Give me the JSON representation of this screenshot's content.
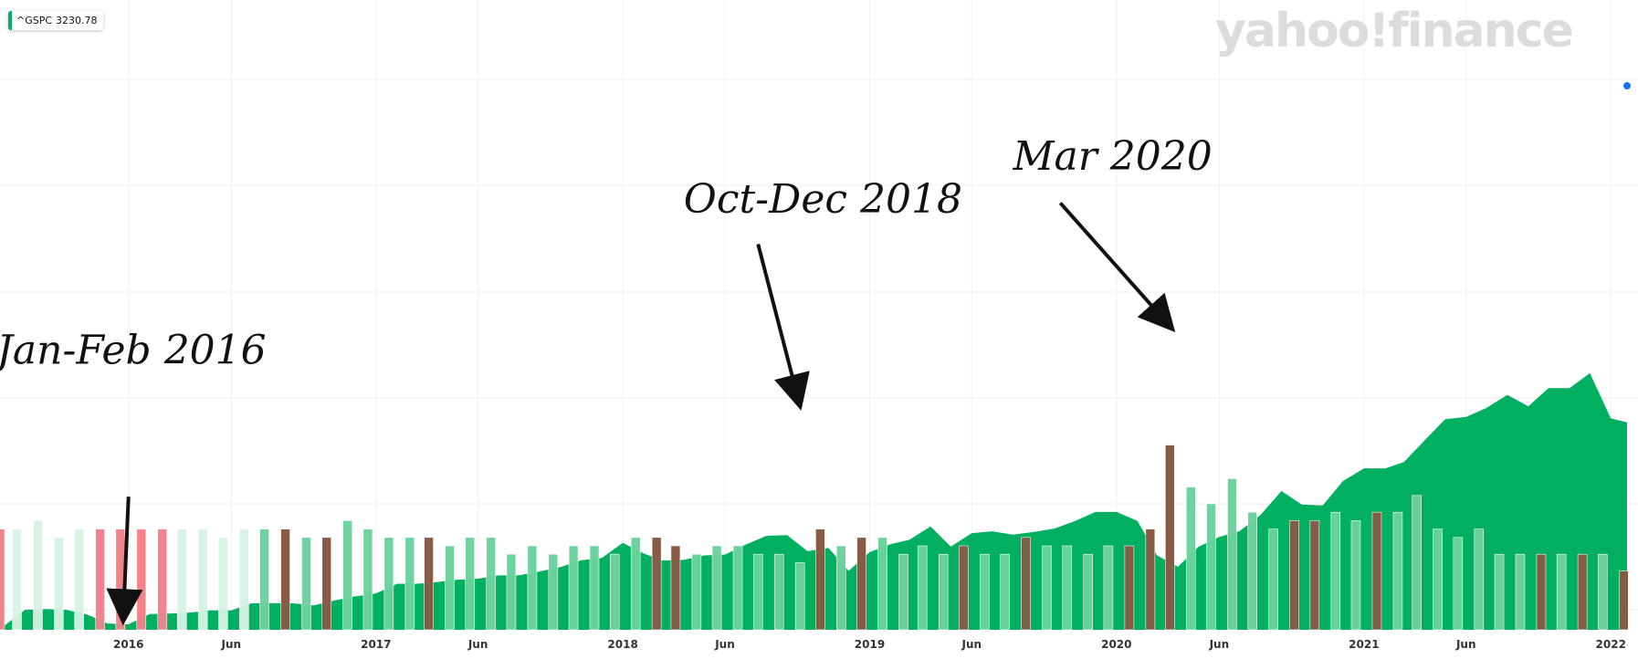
{
  "ticker": {
    "symbol": "^GSPC",
    "value": "3230.78",
    "color": "#00b060"
  },
  "logo": {
    "text": "yahoo!finance"
  },
  "colors": {
    "area": "#00b060",
    "volume_up": "#6ed39e",
    "volume_down": "#8a5a44",
    "volume_pre_up": "#d6f3e3",
    "volume_pre_down": "#f2828c",
    "last_point": "#1a73e8"
  },
  "annotations": [
    {
      "text": "Jan-Feb 2016",
      "label_x": "2015-06-20",
      "label_y": 2980,
      "arrow_from": [
        "2016-01-01",
        2300
      ],
      "arrow_to": [
        "2015-12-25",
        1735
      ]
    },
    {
      "text": "Oct-Dec 2018",
      "label_x": "2018-04-01",
      "label_y": 3750,
      "arrow_from": [
        "2018-07-20",
        3590
      ],
      "arrow_to": [
        "2018-09-15",
        2830
      ]
    },
    {
      "text": "Mar 2020",
      "label_x": "2019-08-01",
      "label_y": 3970,
      "arrow_from": [
        "2019-10-10",
        3800
      ],
      "arrow_to": [
        "2020-03-10",
        3210
      ]
    }
  ],
  "chart_data": {
    "type": "area",
    "x_axis": {
      "domain": [
        "2015-06-25",
        "2022-01-25"
      ],
      "ticks": [
        {
          "date": "2016-01-01",
          "label": "2016"
        },
        {
          "date": "2016-06-01",
          "label": "Jun"
        },
        {
          "date": "2017-01-01",
          "label": "2017"
        },
        {
          "date": "2017-06-01",
          "label": "Jun"
        },
        {
          "date": "2018-01-01",
          "label": "2018"
        },
        {
          "date": "2018-06-01",
          "label": "Jun"
        },
        {
          "date": "2019-01-01",
          "label": "2019"
        },
        {
          "date": "2019-06-01",
          "label": "Jun"
        },
        {
          "date": "2020-01-01",
          "label": "2020"
        },
        {
          "date": "2020-06-01",
          "label": "Jun"
        },
        {
          "date": "2021-01-01",
          "label": "2021"
        },
        {
          "date": "2021-06-01",
          "label": "Jun"
        },
        {
          "date": "2022-01-01",
          "label": "2022"
        }
      ]
    },
    "y_range": [
      1620,
      4800
    ],
    "grid": true,
    "series": [
      {
        "values": [
          [
            "2015-06-25",
            1690
          ],
          [
            "2015-07-01",
            1640
          ],
          [
            "2015-08-01",
            1722
          ],
          [
            "2015-09-01",
            1726
          ],
          [
            "2015-10-01",
            1722
          ],
          [
            "2015-11-01",
            1698
          ],
          [
            "2015-12-01",
            1652
          ],
          [
            "2016-01-01",
            1648
          ],
          [
            "2016-02-01",
            1700
          ],
          [
            "2016-03-01",
            1703
          ],
          [
            "2016-04-01",
            1708
          ],
          [
            "2016-05-01",
            1719
          ],
          [
            "2016-06-01",
            1719
          ],
          [
            "2016-07-01",
            1755
          ],
          [
            "2016-08-01",
            1756
          ],
          [
            "2016-09-01",
            1755
          ],
          [
            "2016-10-01",
            1745
          ],
          [
            "2016-11-01",
            1770
          ],
          [
            "2016-12-01",
            1790
          ],
          [
            "2017-01-01",
            1806
          ],
          [
            "2017-02-01",
            1855
          ],
          [
            "2017-03-01",
            1855
          ],
          [
            "2017-04-01",
            1864
          ],
          [
            "2017-05-01",
            1876
          ],
          [
            "2017-06-01",
            1881
          ],
          [
            "2017-07-01",
            1898
          ],
          [
            "2017-08-01",
            1899
          ],
          [
            "2017-09-01",
            1919
          ],
          [
            "2017-10-01",
            1941
          ],
          [
            "2017-11-01",
            1976
          ],
          [
            "2017-12-01",
            1987
          ],
          [
            "2018-01-01",
            2064
          ],
          [
            "2018-02-01",
            2010
          ],
          [
            "2018-03-01",
            1974
          ],
          [
            "2018-04-01",
            1977
          ],
          [
            "2018-05-01",
            2000
          ],
          [
            "2018-06-01",
            2004
          ],
          [
            "2018-07-01",
            2054
          ],
          [
            "2018-08-01",
            2100
          ],
          [
            "2018-09-01",
            2104
          ],
          [
            "2018-10-01",
            2022
          ],
          [
            "2018-11-01",
            2038
          ],
          [
            "2018-12-01",
            1921
          ],
          [
            "2019-01-01",
            2017
          ],
          [
            "2019-02-01",
            2057
          ],
          [
            "2019-03-01",
            2080
          ],
          [
            "2019-04-01",
            2148
          ],
          [
            "2019-05-01",
            2045
          ],
          [
            "2019-06-01",
            2114
          ],
          [
            "2019-07-01",
            2123
          ],
          [
            "2019-08-01",
            2106
          ],
          [
            "2019-09-01",
            2120
          ],
          [
            "2019-10-01",
            2137
          ],
          [
            "2019-11-01",
            2176
          ],
          [
            "2019-12-01",
            2222
          ],
          [
            "2020-01-01",
            2222
          ],
          [
            "2020-02-01",
            2176
          ],
          [
            "2020-03-01",
            2000
          ],
          [
            "2020-04-01",
            1942
          ],
          [
            "2020-05-01",
            2044
          ],
          [
            "2020-06-01",
            2094
          ],
          [
            "2020-07-01",
            2124
          ],
          [
            "2020-08-01",
            2207
          ],
          [
            "2020-09-01",
            2329
          ],
          [
            "2020-10-01",
            2260
          ],
          [
            "2020-11-01",
            2255
          ],
          [
            "2020-12-01",
            2380
          ],
          [
            "2021-01-01",
            2445
          ],
          [
            "2021-02-01",
            2444
          ],
          [
            "2021-03-01",
            2477
          ],
          [
            "2021-04-01",
            2589
          ],
          [
            "2021-05-01",
            2696
          ],
          [
            "2021-06-01",
            2708
          ],
          [
            "2021-07-01",
            2753
          ],
          [
            "2021-08-01",
            2820
          ],
          [
            "2021-09-01",
            2762
          ],
          [
            "2021-10-01",
            2855
          ],
          [
            "2021-11-01",
            2854
          ],
          [
            "2021-12-01",
            2931
          ],
          [
            "2022-01-01",
            2700
          ],
          [
            "2022-01-25",
            2680
          ]
        ]
      }
    ],
    "volume": {
      "range": [
        0,
        25
      ],
      "bars": [
        [
          "2015-06-25",
          12,
          "pre_down"
        ],
        [
          "2015-07-20",
          12,
          "pre_up"
        ],
        [
          "2015-08-20",
          13,
          "pre_up"
        ],
        [
          "2015-09-20",
          11,
          "pre_up"
        ],
        [
          "2015-10-20",
          12,
          "pre_up"
        ],
        [
          "2015-11-20",
          12,
          "pre_down"
        ],
        [
          "2015-12-20",
          12,
          "pre_down"
        ],
        [
          "2016-01-20",
          12,
          "pre_down"
        ],
        [
          "2016-02-20",
          12,
          "pre_down"
        ],
        [
          "2016-03-20",
          12,
          "pre_up"
        ],
        [
          "2016-04-20",
          12,
          "pre_up"
        ],
        [
          "2016-05-20",
          11,
          "pre_up"
        ],
        [
          "2016-06-20",
          12,
          "pre_up"
        ],
        [
          "2016-07-20",
          12,
          "up"
        ],
        [
          "2016-08-20",
          12,
          "down"
        ],
        [
          "2016-09-20",
          11,
          "up"
        ],
        [
          "2016-10-20",
          11,
          "down"
        ],
        [
          "2016-11-20",
          13,
          "up"
        ],
        [
          "2016-12-20",
          12,
          "up"
        ],
        [
          "2017-01-20",
          11,
          "up"
        ],
        [
          "2017-02-20",
          11,
          "up"
        ],
        [
          "2017-03-20",
          11,
          "down"
        ],
        [
          "2017-04-20",
          10,
          "up"
        ],
        [
          "2017-05-20",
          11,
          "up"
        ],
        [
          "2017-06-20",
          11,
          "up"
        ],
        [
          "2017-07-20",
          9,
          "up"
        ],
        [
          "2017-08-20",
          10,
          "up"
        ],
        [
          "2017-09-20",
          9,
          "up"
        ],
        [
          "2017-10-20",
          10,
          "up"
        ],
        [
          "2017-11-20",
          10,
          "up"
        ],
        [
          "2017-12-20",
          9,
          "up"
        ],
        [
          "2018-01-20",
          11,
          "up"
        ],
        [
          "2018-02-20",
          11,
          "down"
        ],
        [
          "2018-03-20",
          10,
          "down"
        ],
        [
          "2018-04-20",
          9,
          "up"
        ],
        [
          "2018-05-20",
          10,
          "up"
        ],
        [
          "2018-06-20",
          10,
          "up"
        ],
        [
          "2018-07-20",
          9,
          "up"
        ],
        [
          "2018-08-20",
          9,
          "up"
        ],
        [
          "2018-09-20",
          8,
          "up"
        ],
        [
          "2018-10-20",
          12,
          "down"
        ],
        [
          "2018-11-20",
          10,
          "up"
        ],
        [
          "2018-12-20",
          11,
          "down"
        ],
        [
          "2019-01-20",
          11,
          "up"
        ],
        [
          "2019-02-20",
          9,
          "up"
        ],
        [
          "2019-03-20",
          10,
          "up"
        ],
        [
          "2019-04-20",
          9,
          "up"
        ],
        [
          "2019-05-20",
          10,
          "down"
        ],
        [
          "2019-06-20",
          9,
          "up"
        ],
        [
          "2019-07-20",
          9,
          "up"
        ],
        [
          "2019-08-20",
          11,
          "down"
        ],
        [
          "2019-09-20",
          10,
          "up"
        ],
        [
          "2019-10-20",
          10,
          "up"
        ],
        [
          "2019-11-20",
          9,
          "up"
        ],
        [
          "2019-12-20",
          10,
          "up"
        ],
        [
          "2020-01-20",
          10,
          "down"
        ],
        [
          "2020-02-20",
          12,
          "down"
        ],
        [
          "2020-03-20",
          22,
          "down"
        ],
        [
          "2020-04-20",
          17,
          "up"
        ],
        [
          "2020-05-20",
          15,
          "up"
        ],
        [
          "2020-06-20",
          18,
          "up"
        ],
        [
          "2020-07-20",
          14,
          "up"
        ],
        [
          "2020-08-20",
          12,
          "up"
        ],
        [
          "2020-09-20",
          13,
          "down"
        ],
        [
          "2020-10-20",
          13,
          "down"
        ],
        [
          "2020-11-20",
          14,
          "up"
        ],
        [
          "2020-12-20",
          13,
          "up"
        ],
        [
          "2021-01-20",
          14,
          "down"
        ],
        [
          "2021-02-20",
          14,
          "up"
        ],
        [
          "2021-03-20",
          16,
          "up"
        ],
        [
          "2021-04-20",
          12,
          "up"
        ],
        [
          "2021-05-20",
          11,
          "up"
        ],
        [
          "2021-06-20",
          12,
          "up"
        ],
        [
          "2021-07-20",
          9,
          "up"
        ],
        [
          "2021-08-20",
          9,
          "up"
        ],
        [
          "2021-09-20",
          9,
          "down"
        ],
        [
          "2021-10-20",
          9,
          "up"
        ],
        [
          "2021-11-20",
          9,
          "down"
        ],
        [
          "2021-12-20",
          9,
          "up"
        ],
        [
          "2022-01-20",
          7,
          "down"
        ]
      ]
    }
  }
}
